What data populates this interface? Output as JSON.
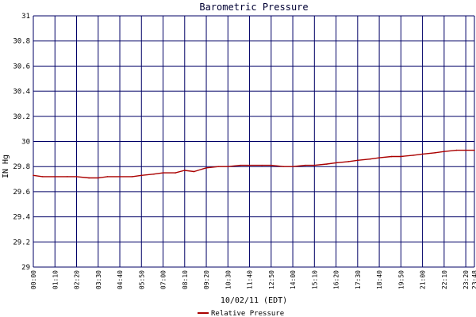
{
  "chart_data": {
    "type": "line",
    "title": "Barometric Pressure",
    "xlabel": "10/02/11 (EDT)",
    "ylabel": "IN Hg",
    "ylim": [
      29,
      31
    ],
    "y_ticks": [
      "29",
      "29.2",
      "29.4",
      "29.6",
      "29.8",
      "30",
      "30.2",
      "30.4",
      "30.6",
      "30.8",
      "31"
    ],
    "x_ticks": [
      "00:00",
      "01:10",
      "02:20",
      "03:30",
      "04:40",
      "05:50",
      "07:00",
      "08:10",
      "09:20",
      "10:30",
      "11:40",
      "12:50",
      "14:00",
      "15:10",
      "16:20",
      "17:30",
      "18:40",
      "19:50",
      "21:00",
      "22:10",
      "23:20",
      "23:48"
    ],
    "grid": true,
    "legend_position": "bottom-center",
    "series": [
      {
        "name": "Relative Pressure",
        "color": "#aa0000",
        "x": [
          "00:00",
          "00:30",
          "01:10",
          "01:50",
          "02:20",
          "03:00",
          "03:30",
          "04:00",
          "04:40",
          "05:20",
          "05:50",
          "06:30",
          "07:00",
          "07:40",
          "08:10",
          "08:40",
          "09:20",
          "10:00",
          "10:30",
          "11:10",
          "11:40",
          "12:20",
          "12:50",
          "13:30",
          "14:00",
          "14:40",
          "15:10",
          "15:50",
          "16:20",
          "17:00",
          "17:30",
          "18:10",
          "18:40",
          "19:20",
          "19:50",
          "20:30",
          "21:00",
          "21:40",
          "22:10",
          "22:50",
          "23:20",
          "23:48"
        ],
        "values": [
          29.73,
          29.72,
          29.72,
          29.72,
          29.72,
          29.71,
          29.71,
          29.72,
          29.72,
          29.72,
          29.73,
          29.74,
          29.75,
          29.75,
          29.77,
          29.76,
          29.79,
          29.8,
          29.8,
          29.81,
          29.81,
          29.81,
          29.81,
          29.8,
          29.8,
          29.81,
          29.81,
          29.82,
          29.83,
          29.84,
          29.85,
          29.86,
          29.87,
          29.88,
          29.88,
          29.89,
          29.9,
          29.91,
          29.92,
          29.93,
          29.93,
          29.93
        ]
      }
    ]
  },
  "colors": {
    "grid": "#000066",
    "title": "#000033",
    "series": "#aa0000"
  }
}
